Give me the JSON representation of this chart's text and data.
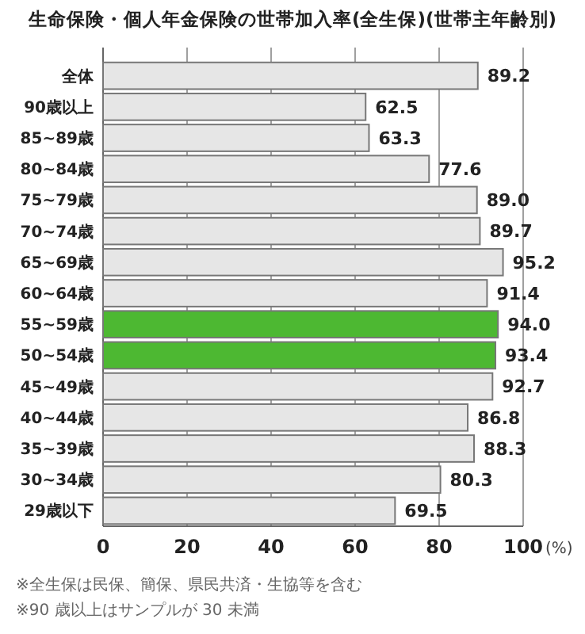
{
  "chart_data": {
    "type": "bar",
    "orientation": "horizontal",
    "title": "生命保険・個人年金保険の世帯加入率(全生保)(世帯主年齢別)",
    "categories": [
      "全体",
      "90歳以上",
      "85~89歳",
      "80~84歳",
      "75~79歳",
      "70~74歳",
      "65~69歳",
      "60~64歳",
      "55~59歳",
      "50~54歳",
      "45~49歳",
      "40~44歳",
      "35~39歳",
      "30~34歳",
      "29歳以下"
    ],
    "values": [
      89.2,
      62.5,
      63.3,
      77.6,
      89.0,
      89.7,
      95.2,
      91.4,
      94.0,
      93.4,
      92.7,
      86.8,
      88.3,
      80.3,
      69.5
    ],
    "value_labels": [
      "89.2",
      "62.5",
      "63.3",
      "77.6",
      "89.0",
      "89.7",
      "95.2",
      "91.4",
      "94.0",
      "93.4",
      "92.7",
      "86.8",
      "88.3",
      "80.3",
      "69.5"
    ],
    "colors": [
      "#e6e6e6",
      "#e6e6e6",
      "#e6e6e6",
      "#e6e6e6",
      "#e6e6e6",
      "#e6e6e6",
      "#e6e6e6",
      "#e6e6e6",
      "#4db832",
      "#4db832",
      "#e6e6e6",
      "#e6e6e6",
      "#e6e6e6",
      "#e6e6e6",
      "#e6e6e6"
    ],
    "xlim": [
      0,
      100
    ],
    "xticks": [
      0,
      20,
      40,
      60,
      80,
      100
    ],
    "xlabel": "(%)",
    "grid": "x",
    "annotations": [
      "※全生保は民保、簡保、県民共済・生協等を含む",
      "※90 歳以上はサンプルが 30 未満"
    ]
  }
}
